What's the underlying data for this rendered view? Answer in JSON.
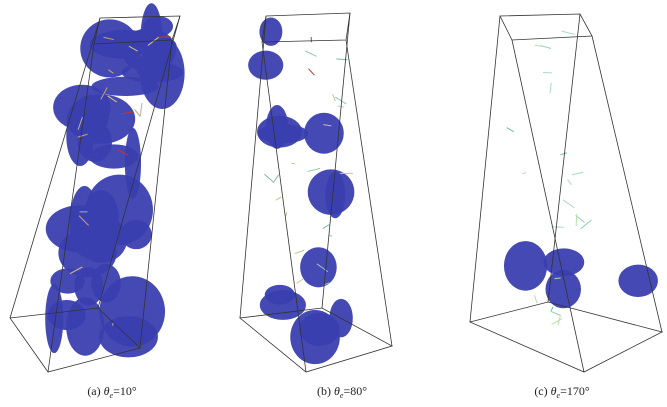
{
  "figure": {
    "panels": [
      {
        "label": "(a)",
        "symbol": "θ",
        "subscript": "e",
        "value": "=10°"
      },
      {
        "label": "(b)",
        "symbol": "θ",
        "subscript": "e",
        "value": "=80°"
      },
      {
        "label": "(c)",
        "symbol": "θ",
        "subscript": "e",
        "value": "=170°"
      }
    ]
  }
}
